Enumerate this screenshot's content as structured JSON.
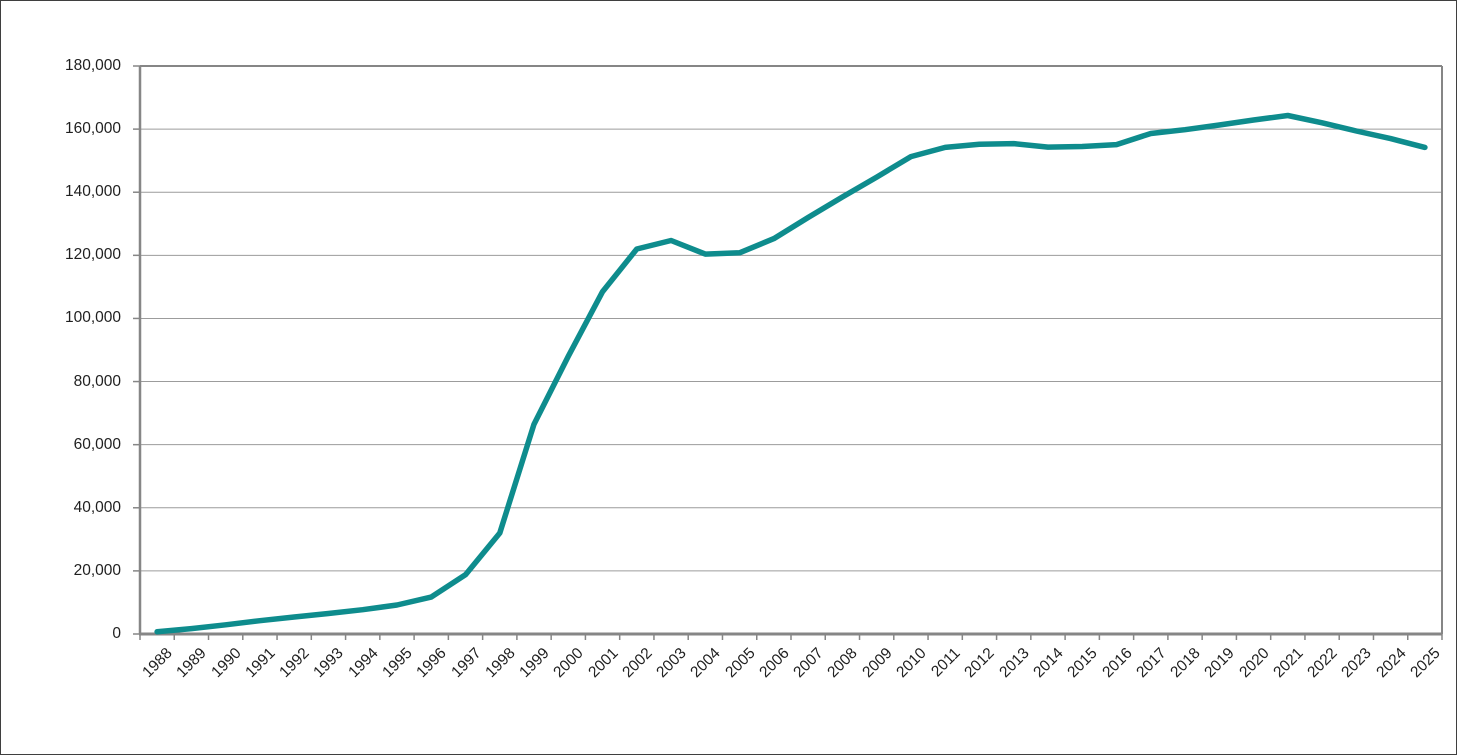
{
  "chart_data": {
    "type": "line",
    "title": "",
    "categories": [
      "1988",
      "1989",
      "1990",
      "1991",
      "1992",
      "1993",
      "1994",
      "1995",
      "1996",
      "1997",
      "1998",
      "1999",
      "2000",
      "2001",
      "2002",
      "2003",
      "2004",
      "2005",
      "2006",
      "2007",
      "2008",
      "2009",
      "2010",
      "2011",
      "2012",
      "2013",
      "2014",
      "2015",
      "2016",
      "2017",
      "2018",
      "2019",
      "2020",
      "2021",
      "2022",
      "2023",
      "2024",
      "2025"
    ],
    "series": [
      {
        "color": "#0e8c8d",
        "values": [
          700,
          1700,
          2900,
          4200,
          5400,
          6500,
          7700,
          9200,
          11700,
          18800,
          32000,
          66500,
          88000,
          108500,
          122000,
          124700,
          120400,
          120800,
          125300,
          132000,
          138500,
          144800,
          151300,
          154200,
          155200,
          155400,
          154300,
          154500,
          155100,
          158600,
          159800,
          161300,
          162900,
          164300,
          162000,
          159400,
          157000,
          154200
        ]
      }
    ],
    "xlabel": "",
    "ylabel": "",
    "ylim": [
      0,
      180000
    ],
    "ytick_step": 20000,
    "y_tick_labels": [
      "0",
      "20,000",
      "40,000",
      "60,000",
      "80,000",
      "100,000",
      "120,000",
      "140,000",
      "160,000",
      "180,000"
    ],
    "grid": "horizontal-only",
    "legend_position": "none"
  },
  "colors": {
    "line": "#0e8c8d",
    "axis": "#868686",
    "gridline": "#9c9c9c",
    "tick_text": "#1f1f1f",
    "background": "#ffffff",
    "outer_border": "#3f3f3f"
  }
}
